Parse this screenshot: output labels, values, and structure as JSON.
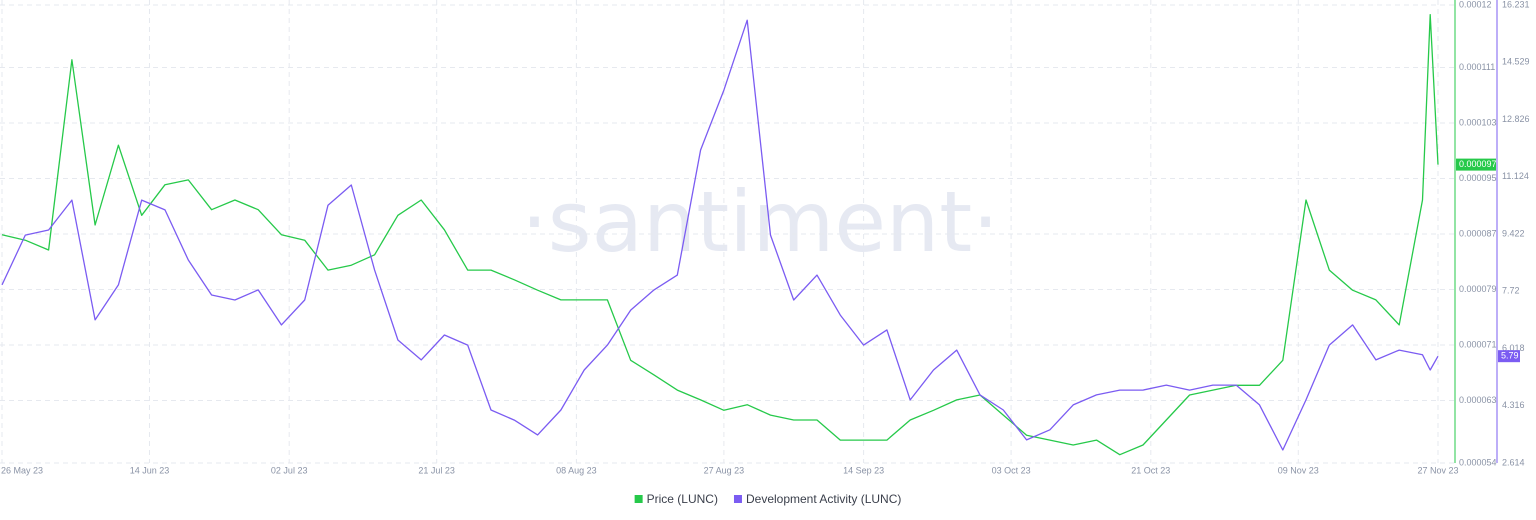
{
  "chart_data": {
    "type": "line",
    "watermark": "·santiment·",
    "x": [
      "26 May 23",
      "29 May 23",
      "01 Jun 23",
      "04 Jun 23",
      "07 Jun 23",
      "10 Jun 23",
      "13 Jun 23",
      "16 Jun 23",
      "19 Jun 23",
      "22 Jun 23",
      "25 Jun 23",
      "28 Jun 23",
      "01 Jul 23",
      "04 Jul 23",
      "07 Jul 23",
      "10 Jul 23",
      "13 Jul 23",
      "16 Jul 23",
      "19 Jul 23",
      "22 Jul 23",
      "25 Jul 23",
      "28 Jul 23",
      "31 Jul 23",
      "03 Aug 23",
      "06 Aug 23",
      "09 Aug 23",
      "12 Aug 23",
      "15 Aug 23",
      "18 Aug 23",
      "21 Aug 23",
      "24 Aug 23",
      "27 Aug 23",
      "30 Aug 23",
      "02 Sep 23",
      "05 Sep 23",
      "08 Sep 23",
      "11 Sep 23",
      "14 Sep 23",
      "17 Sep 23",
      "20 Sep 23",
      "23 Sep 23",
      "26 Sep 23",
      "29 Sep 23",
      "02 Oct 23",
      "05 Oct 23",
      "08 Oct 23",
      "11 Oct 23",
      "14 Oct 23",
      "17 Oct 23",
      "20 Oct 23",
      "23 Oct 23",
      "26 Oct 23",
      "29 Oct 23",
      "01 Nov 23",
      "04 Nov 23",
      "07 Nov 23",
      "10 Nov 23",
      "13 Nov 23",
      "16 Nov 23",
      "19 Nov 23",
      "22 Nov 23",
      "25 Nov 23",
      "26 Nov 23",
      "27 Nov 23"
    ],
    "xticks": [
      "26 May 23",
      "14 Jun 23",
      "02 Jul 23",
      "21 Jul 23",
      "08 Aug 23",
      "27 Aug 23",
      "14 Sep 23",
      "03 Oct 23",
      "21 Oct 23",
      "09 Nov 23",
      "27 Nov 23"
    ],
    "ylim": [
      5.4e-05,
      0.00012
    ],
    "yticks": [
      5.4e-05,
      6.3e-05,
      7.1e-05,
      7.9e-05,
      8.7e-05,
      9.5e-05,
      0.000103,
      0.000111,
      0.00012
    ],
    "y2lim": [
      2.614,
      16.231
    ],
    "y2ticks": [
      2.614,
      4.316,
      6.018,
      7.72,
      9.422,
      11.124,
      12.826,
      14.529,
      16.231
    ],
    "grid": true,
    "legend": "bottom",
    "series": [
      {
        "name": "Price (LUNC)",
        "color": "#26c94a",
        "current_value_label": "0.000097",
        "values": [
          8.69e-05,
          8.61e-05,
          8.47e-05,
          0.0001121,
          8.83e-05,
          9.98e-05,
          8.97e-05,
          9.41e-05,
          9.48e-05,
          9.05e-05,
          9.19e-05,
          9.05e-05,
          8.69e-05,
          8.61e-05,
          8.18e-05,
          8.25e-05,
          8.4e-05,
          8.97e-05,
          9.19e-05,
          8.76e-05,
          8.18e-05,
          8.18e-05,
          8.04e-05,
          7.89e-05,
          7.75e-05,
          7.75e-05,
          7.75e-05,
          6.88e-05,
          6.67e-05,
          6.45e-05,
          6.31e-05,
          6.16e-05,
          6.24e-05,
          6.09e-05,
          6.02e-05,
          6.02e-05,
          5.73e-05,
          5.73e-05,
          5.73e-05,
          6.02e-05,
          6.16e-05,
          6.31e-05,
          6.38e-05,
          6.09e-05,
          5.8e-05,
          5.73e-05,
          5.66e-05,
          5.73e-05,
          5.52e-05,
          5.66e-05,
          6.02e-05,
          6.38e-05,
          6.45e-05,
          6.52e-05,
          6.52e-05,
          6.88e-05,
          9.19e-05,
          8.18e-05,
          7.89e-05,
          7.75e-05,
          7.39e-05,
          9.19e-05,
          0.0001186,
          9.7e-05
        ]
      },
      {
        "name": "Development Activity (LUNC)",
        "color": "#7b5cf2",
        "axis": "y2",
        "current_value_label": "5.79",
        "values": [
          7.91,
          9.39,
          9.54,
          10.43,
          6.87,
          7.91,
          10.43,
          10.14,
          8.65,
          7.61,
          7.46,
          7.76,
          6.72,
          7.46,
          10.28,
          10.88,
          8.35,
          6.27,
          5.68,
          6.42,
          6.12,
          4.19,
          3.89,
          3.45,
          4.19,
          5.38,
          6.12,
          7.16,
          7.76,
          8.2,
          11.92,
          13.7,
          15.78,
          9.39,
          7.46,
          8.2,
          7.01,
          6.12,
          6.57,
          4.49,
          5.38,
          5.97,
          4.64,
          4.19,
          3.3,
          3.6,
          4.34,
          4.64,
          4.78,
          4.78,
          4.93,
          4.78,
          4.93,
          4.93,
          4.34,
          3,
          4.49,
          6.12,
          6.72,
          5.68,
          5.97,
          5.83,
          5.38,
          5.79
        ]
      }
    ]
  }
}
